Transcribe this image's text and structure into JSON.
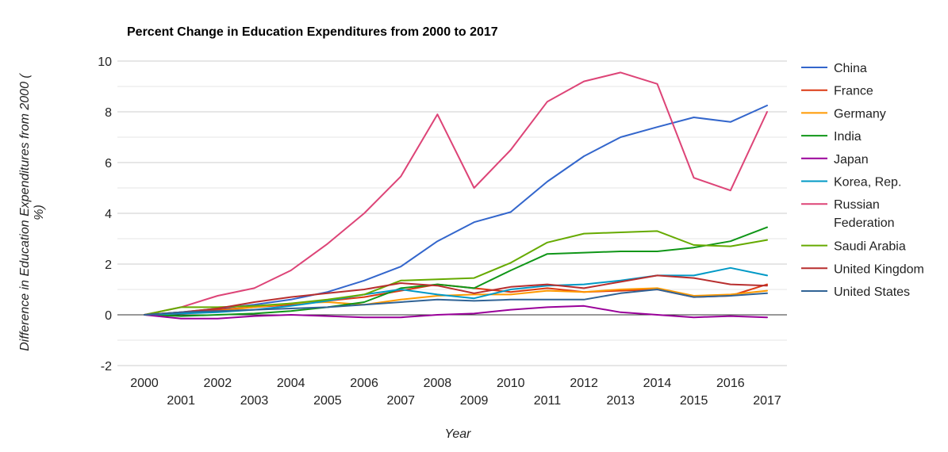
{
  "chart_data": {
    "type": "line",
    "title": "Percent Change in Education Expenditures from 2000 to 2017",
    "xlabel": "Year",
    "ylabel": "Difference in Education Expenditures from 2000 ( %)",
    "ylabel_lines": [
      "Difference in Education Expenditures from 2000 (",
      "%)"
    ],
    "x": [
      2000,
      2001,
      2002,
      2003,
      2004,
      2005,
      2006,
      2007,
      2008,
      2009,
      2010,
      2011,
      2012,
      2013,
      2014,
      2015,
      2016,
      2017
    ],
    "x_tick_labels": [
      "2000",
      "2001",
      "2002",
      "2003",
      "2004",
      "2005",
      "2006",
      "2007",
      "2008",
      "2009",
      "2010",
      "2011",
      "2012",
      "2013",
      "2014",
      "2015",
      "2016",
      "2017"
    ],
    "ylim": [
      -2,
      10
    ],
    "y_ticks": [
      -2,
      0,
      2,
      4,
      6,
      8,
      10
    ],
    "y_tick_labels": [
      "-2",
      "0",
      "2",
      "4",
      "6",
      "8",
      "10"
    ],
    "grid": true,
    "legend_position": "right",
    "series": [
      {
        "name": "China",
        "name_lines": [
          "China"
        ],
        "color": "#3366cc",
        "values": [
          0,
          0.1,
          0.25,
          0.4,
          0.6,
          0.9,
          1.35,
          1.9,
          2.9,
          3.65,
          4.05,
          5.25,
          6.25,
          7.0,
          7.4,
          7.78,
          7.6,
          8.25
        ]
      },
      {
        "name": "France",
        "name_lines": [
          "France"
        ],
        "color": "#dc3912",
        "values": [
          0,
          0.1,
          0.2,
          0.3,
          0.4,
          0.55,
          0.7,
          0.95,
          1.2,
          1.05,
          0.9,
          1.05,
          0.9,
          0.95,
          1.0,
          0.7,
          0.75,
          1.2
        ]
      },
      {
        "name": "Germany",
        "name_lines": [
          "Germany"
        ],
        "color": "#ff9900",
        "values": [
          0,
          0.05,
          0.15,
          0.3,
          0.45,
          0.5,
          0.4,
          0.6,
          0.75,
          0.8,
          0.8,
          0.95,
          0.9,
          1.0,
          1.05,
          0.75,
          0.8,
          0.95
        ]
      },
      {
        "name": "India",
        "name_lines": [
          "India"
        ],
        "color": "#109618",
        "values": [
          0,
          -0.05,
          0.0,
          0.05,
          0.15,
          0.3,
          0.5,
          1.05,
          1.2,
          1.05,
          1.75,
          2.4,
          2.45,
          2.5,
          2.5,
          2.65,
          2.9,
          3.45
        ]
      },
      {
        "name": "Japan",
        "name_lines": [
          "Japan"
        ],
        "color": "#990099",
        "values": [
          0,
          -0.15,
          -0.15,
          -0.05,
          0.0,
          -0.05,
          -0.1,
          -0.1,
          0.0,
          0.05,
          0.2,
          0.3,
          0.35,
          0.1,
          0.0,
          -0.1,
          -0.05,
          -0.1
        ]
      },
      {
        "name": "Korea, Rep.",
        "name_lines": [
          "Korea, Rep."
        ],
        "color": "#0099c6",
        "values": [
          0,
          0.05,
          0.1,
          0.2,
          0.35,
          0.55,
          0.8,
          1.0,
          0.8,
          0.65,
          1.0,
          1.15,
          1.2,
          1.35,
          1.55,
          1.55,
          1.85,
          1.55
        ]
      },
      {
        "name": "Russian Federation",
        "name_lines": [
          "Russian",
          "Federation"
        ],
        "color": "#dd4477",
        "values": [
          0,
          0.3,
          0.75,
          1.05,
          1.75,
          2.8,
          4.0,
          5.45,
          7.9,
          5.0,
          6.5,
          8.4,
          9.2,
          9.55,
          9.1,
          5.4,
          4.9,
          8.0
        ]
      },
      {
        "name": "Saudi Arabia",
        "name_lines": [
          "Saudi Arabia"
        ],
        "color": "#66aa00",
        "values": [
          0,
          0.3,
          0.3,
          0.35,
          0.45,
          0.6,
          0.8,
          1.35,
          1.4,
          1.45,
          2.05,
          2.85,
          3.2,
          3.25,
          3.3,
          2.75,
          2.7,
          2.95
        ]
      },
      {
        "name": "United Kingdom",
        "name_lines": [
          "United Kingdom"
        ],
        "color": "#b82e2e",
        "values": [
          0,
          0.1,
          0.25,
          0.5,
          0.7,
          0.85,
          1.0,
          1.25,
          1.15,
          0.85,
          1.1,
          1.2,
          1.05,
          1.3,
          1.55,
          1.45,
          1.2,
          1.15
        ]
      },
      {
        "name": "United States",
        "name_lines": [
          "United States"
        ],
        "color": "#316395",
        "values": [
          0,
          0.1,
          0.15,
          0.2,
          0.25,
          0.3,
          0.4,
          0.5,
          0.6,
          0.55,
          0.6,
          0.6,
          0.6,
          0.85,
          1.0,
          0.7,
          0.75,
          0.85
        ]
      }
    ]
  }
}
